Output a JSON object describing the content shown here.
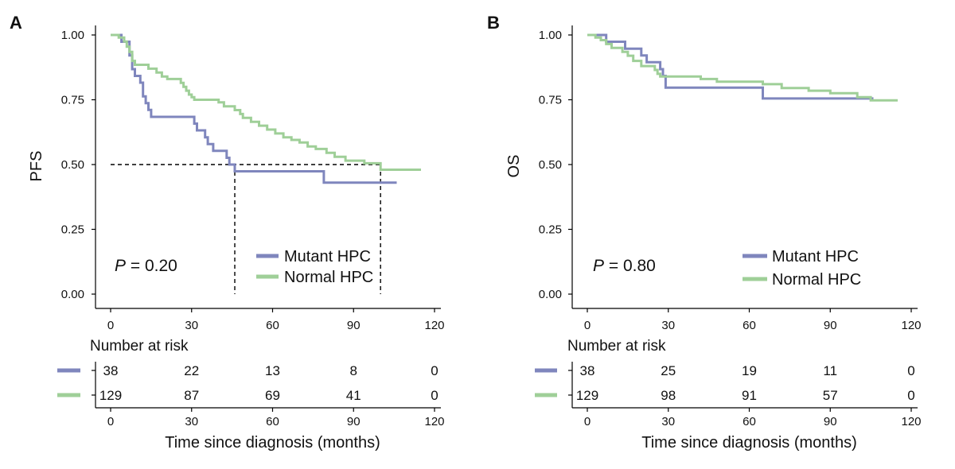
{
  "chart_data": [
    {
      "type": "line",
      "subtype": "kaplan-meier",
      "panel": "A",
      "ylabel": "PFS",
      "xlabel": "Time since diagnosis (months)",
      "xlim": [
        0,
        120
      ],
      "ylim": [
        0,
        1
      ],
      "x_ticks": [
        "0",
        "30",
        "60",
        "90",
        "120"
      ],
      "y_ticks": [
        "0.00",
        "0.25",
        "0.50",
        "0.75",
        "1.00"
      ],
      "p_label": "P",
      "p_value": " = 0.20",
      "median_reference": {
        "y": 0.5,
        "x_marks": [
          46,
          100
        ]
      },
      "series": [
        {
          "name": "Mutant HPC",
          "color": "#7f86bd",
          "points": [
            [
              0,
              1.0
            ],
            [
              4,
              1.0
            ],
            [
              4,
              0.974
            ],
            [
              7,
              0.974
            ],
            [
              7,
              0.921
            ],
            [
              8,
              0.921
            ],
            [
              8,
              0.868
            ],
            [
              9,
              0.868
            ],
            [
              9,
              0.842
            ],
            [
              11,
              0.842
            ],
            [
              11,
              0.816
            ],
            [
              12,
              0.816
            ],
            [
              12,
              0.763
            ],
            [
              13,
              0.763
            ],
            [
              13,
              0.737
            ],
            [
              14,
              0.737
            ],
            [
              14,
              0.711
            ],
            [
              15,
              0.711
            ],
            [
              15,
              0.684
            ],
            [
              31,
              0.684
            ],
            [
              31,
              0.658
            ],
            [
              32,
              0.658
            ],
            [
              32,
              0.632
            ],
            [
              35,
              0.632
            ],
            [
              35,
              0.605
            ],
            [
              36,
              0.605
            ],
            [
              36,
              0.579
            ],
            [
              38,
              0.579
            ],
            [
              38,
              0.553
            ],
            [
              43,
              0.553
            ],
            [
              43,
              0.526
            ],
            [
              44,
              0.526
            ],
            [
              44,
              0.5
            ],
            [
              46,
              0.5
            ],
            [
              46,
              0.474
            ],
            [
              79,
              0.474
            ],
            [
              79,
              0.43
            ],
            [
              106,
              0.43
            ]
          ]
        },
        {
          "name": "Normal HPC",
          "color": "#9fcf98",
          "points": [
            [
              0,
              1.0
            ],
            [
              3,
              1.0
            ],
            [
              3,
              0.99
            ],
            [
              5,
              0.99
            ],
            [
              5,
              0.975
            ],
            [
              6,
              0.975
            ],
            [
              6,
              0.955
            ],
            [
              7,
              0.955
            ],
            [
              7,
              0.935
            ],
            [
              8,
              0.935
            ],
            [
              8,
              0.9
            ],
            [
              9,
              0.9
            ],
            [
              9,
              0.885
            ],
            [
              14,
              0.885
            ],
            [
              14,
              0.87
            ],
            [
              17,
              0.87
            ],
            [
              17,
              0.855
            ],
            [
              19,
              0.855
            ],
            [
              19,
              0.84
            ],
            [
              21,
              0.84
            ],
            [
              21,
              0.83
            ],
            [
              26,
              0.83
            ],
            [
              26,
              0.815
            ],
            [
              27,
              0.815
            ],
            [
              27,
              0.8
            ],
            [
              28,
              0.8
            ],
            [
              28,
              0.785
            ],
            [
              29,
              0.785
            ],
            [
              29,
              0.77
            ],
            [
              30,
              0.77
            ],
            [
              30,
              0.76
            ],
            [
              31,
              0.76
            ],
            [
              31,
              0.75
            ],
            [
              40,
              0.75
            ],
            [
              40,
              0.74
            ],
            [
              42,
              0.74
            ],
            [
              42,
              0.725
            ],
            [
              46,
              0.725
            ],
            [
              46,
              0.71
            ],
            [
              48,
              0.71
            ],
            [
              48,
              0.695
            ],
            [
              49,
              0.695
            ],
            [
              49,
              0.68
            ],
            [
              52,
              0.68
            ],
            [
              52,
              0.665
            ],
            [
              55,
              0.665
            ],
            [
              55,
              0.65
            ],
            [
              58,
              0.65
            ],
            [
              58,
              0.635
            ],
            [
              61,
              0.635
            ],
            [
              61,
              0.62
            ],
            [
              64,
              0.62
            ],
            [
              64,
              0.605
            ],
            [
              67,
              0.605
            ],
            [
              67,
              0.595
            ],
            [
              70,
              0.595
            ],
            [
              70,
              0.585
            ],
            [
              73,
              0.585
            ],
            [
              73,
              0.57
            ],
            [
              76,
              0.57
            ],
            [
              76,
              0.56
            ],
            [
              80,
              0.56
            ],
            [
              80,
              0.545
            ],
            [
              83,
              0.545
            ],
            [
              83,
              0.53
            ],
            [
              87,
              0.53
            ],
            [
              87,
              0.515
            ],
            [
              94,
              0.515
            ],
            [
              94,
              0.505
            ],
            [
              100,
              0.505
            ],
            [
              100,
              0.48
            ],
            [
              115,
              0.48
            ]
          ]
        }
      ],
      "risk_table": {
        "title": "Number at risk",
        "time_ticks": [
          "0",
          "30",
          "60",
          "90",
          "120"
        ],
        "rows": [
          {
            "name": "Mutant HPC",
            "counts": [
              "38",
              "22",
              "13",
              "8",
              "0"
            ]
          },
          {
            "name": "Normal HPC",
            "counts": [
              "129",
              "87",
              "69",
              "41",
              "0"
            ]
          }
        ]
      }
    },
    {
      "type": "line",
      "subtype": "kaplan-meier",
      "panel": "B",
      "ylabel": "OS",
      "xlabel": "Time since diagnosis (months)",
      "xlim": [
        0,
        120
      ],
      "ylim": [
        0,
        1
      ],
      "x_ticks": [
        "0",
        "30",
        "60",
        "90",
        "120"
      ],
      "y_ticks": [
        "0.00",
        "0.25",
        "0.50",
        "0.75",
        "1.00"
      ],
      "p_label": "P",
      "p_value": " = 0.80",
      "series": [
        {
          "name": "Mutant HPC",
          "color": "#7f86bd",
          "points": [
            [
              0,
              1.0
            ],
            [
              7,
              1.0
            ],
            [
              7,
              0.974
            ],
            [
              14,
              0.974
            ],
            [
              14,
              0.947
            ],
            [
              20,
              0.947
            ],
            [
              20,
              0.921
            ],
            [
              22,
              0.921
            ],
            [
              22,
              0.895
            ],
            [
              27,
              0.895
            ],
            [
              27,
              0.868
            ],
            [
              28,
              0.868
            ],
            [
              28,
              0.842
            ],
            [
              29,
              0.842
            ],
            [
              29,
              0.797
            ],
            [
              65,
              0.797
            ],
            [
              65,
              0.755
            ],
            [
              106,
              0.755
            ]
          ]
        },
        {
          "name": "Normal HPC",
          "color": "#9fcf98",
          "points": [
            [
              0,
              1.0
            ],
            [
              3,
              1.0
            ],
            [
              3,
              0.99
            ],
            [
              5,
              0.99
            ],
            [
              5,
              0.98
            ],
            [
              7,
              0.98
            ],
            [
              7,
              0.965
            ],
            [
              9,
              0.965
            ],
            [
              9,
              0.95
            ],
            [
              13,
              0.95
            ],
            [
              13,
              0.935
            ],
            [
              15,
              0.935
            ],
            [
              15,
              0.92
            ],
            [
              17,
              0.92
            ],
            [
              17,
              0.9
            ],
            [
              20,
              0.9
            ],
            [
              20,
              0.88
            ],
            [
              25,
              0.88
            ],
            [
              25,
              0.865
            ],
            [
              26,
              0.865
            ],
            [
              26,
              0.85
            ],
            [
              27,
              0.85
            ],
            [
              27,
              0.84
            ],
            [
              42,
              0.84
            ],
            [
              42,
              0.83
            ],
            [
              48,
              0.83
            ],
            [
              48,
              0.82
            ],
            [
              65,
              0.82
            ],
            [
              65,
              0.81
            ],
            [
              72,
              0.81
            ],
            [
              72,
              0.795
            ],
            [
              82,
              0.795
            ],
            [
              82,
              0.785
            ],
            [
              90,
              0.785
            ],
            [
              90,
              0.775
            ],
            [
              100,
              0.775
            ],
            [
              100,
              0.76
            ],
            [
              105,
              0.76
            ],
            [
              105,
              0.748
            ],
            [
              115,
              0.748
            ]
          ]
        }
      ],
      "risk_table": {
        "title": "Number at risk",
        "time_ticks": [
          "0",
          "30",
          "60",
          "90",
          "120"
        ],
        "rows": [
          {
            "name": "Mutant HPC",
            "counts": [
              "38",
              "25",
              "19",
              "11",
              "0"
            ]
          },
          {
            "name": "Normal HPC",
            "counts": [
              "129",
              "98",
              "91",
              "57",
              "0"
            ]
          }
        ]
      }
    }
  ]
}
